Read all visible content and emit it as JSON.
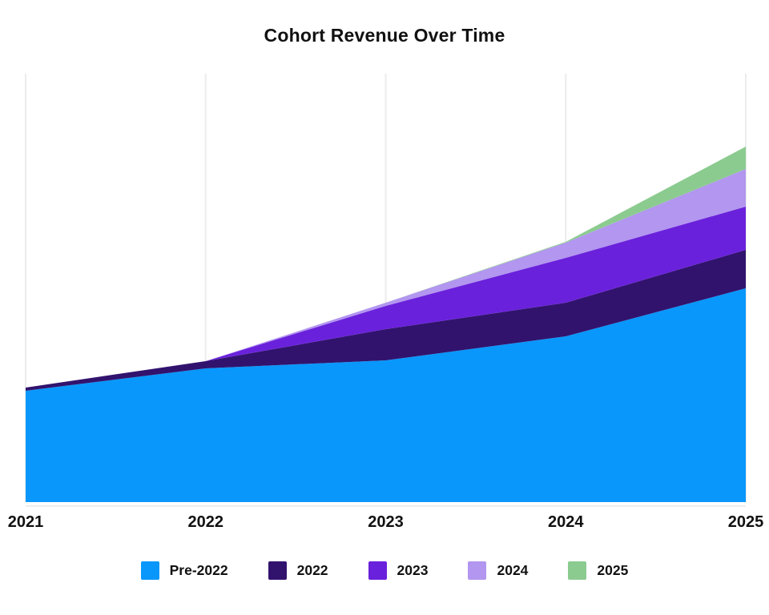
{
  "title": "Cohort Revenue Over Time",
  "colors": {
    "background": "#ffffff",
    "gridline": "#ececec",
    "axis_line": "#e8e8e8",
    "text": "#111111"
  },
  "chart_data": {
    "type": "area",
    "stacked": true,
    "title": "Cohort Revenue Over Time",
    "x": [
      2021,
      2022,
      2023,
      2024,
      2025
    ],
    "x_tick_labels": [
      "2021",
      "2022",
      "2023",
      "2024",
      "2025"
    ],
    "series": [
      {
        "name": "Pre-2022",
        "color": "#0997fb",
        "values": [
          139,
          167,
          177,
          207,
          267
        ]
      },
      {
        "name": "2022",
        "color": "#31136e",
        "values": [
          4,
          9,
          39,
          42,
          48
        ]
      },
      {
        "name": "2023",
        "color": "#6a21db",
        "values": [
          0,
          0,
          29,
          56,
          54
        ]
      },
      {
        "name": "2024",
        "color": "#b296ef",
        "values": [
          0,
          0,
          4,
          19,
          47
        ]
      },
      {
        "name": "2025",
        "color": "#8ccb90",
        "values": [
          0,
          0,
          0,
          1,
          28
        ]
      }
    ],
    "units": "arbitrary (no y-axis labels shown)",
    "ylim": [
      0,
      535
    ],
    "grid": "vertical-only",
    "xlabel": "",
    "ylabel": "",
    "legend_position": "bottom"
  },
  "legend": {
    "items": [
      {
        "label": "Pre-2022",
        "color": "#0997fb"
      },
      {
        "label": "2022",
        "color": "#31136e"
      },
      {
        "label": "2023",
        "color": "#6a21db"
      },
      {
        "label": "2024",
        "color": "#b296ef"
      },
      {
        "label": "2025",
        "color": "#8ccb90"
      }
    ]
  }
}
